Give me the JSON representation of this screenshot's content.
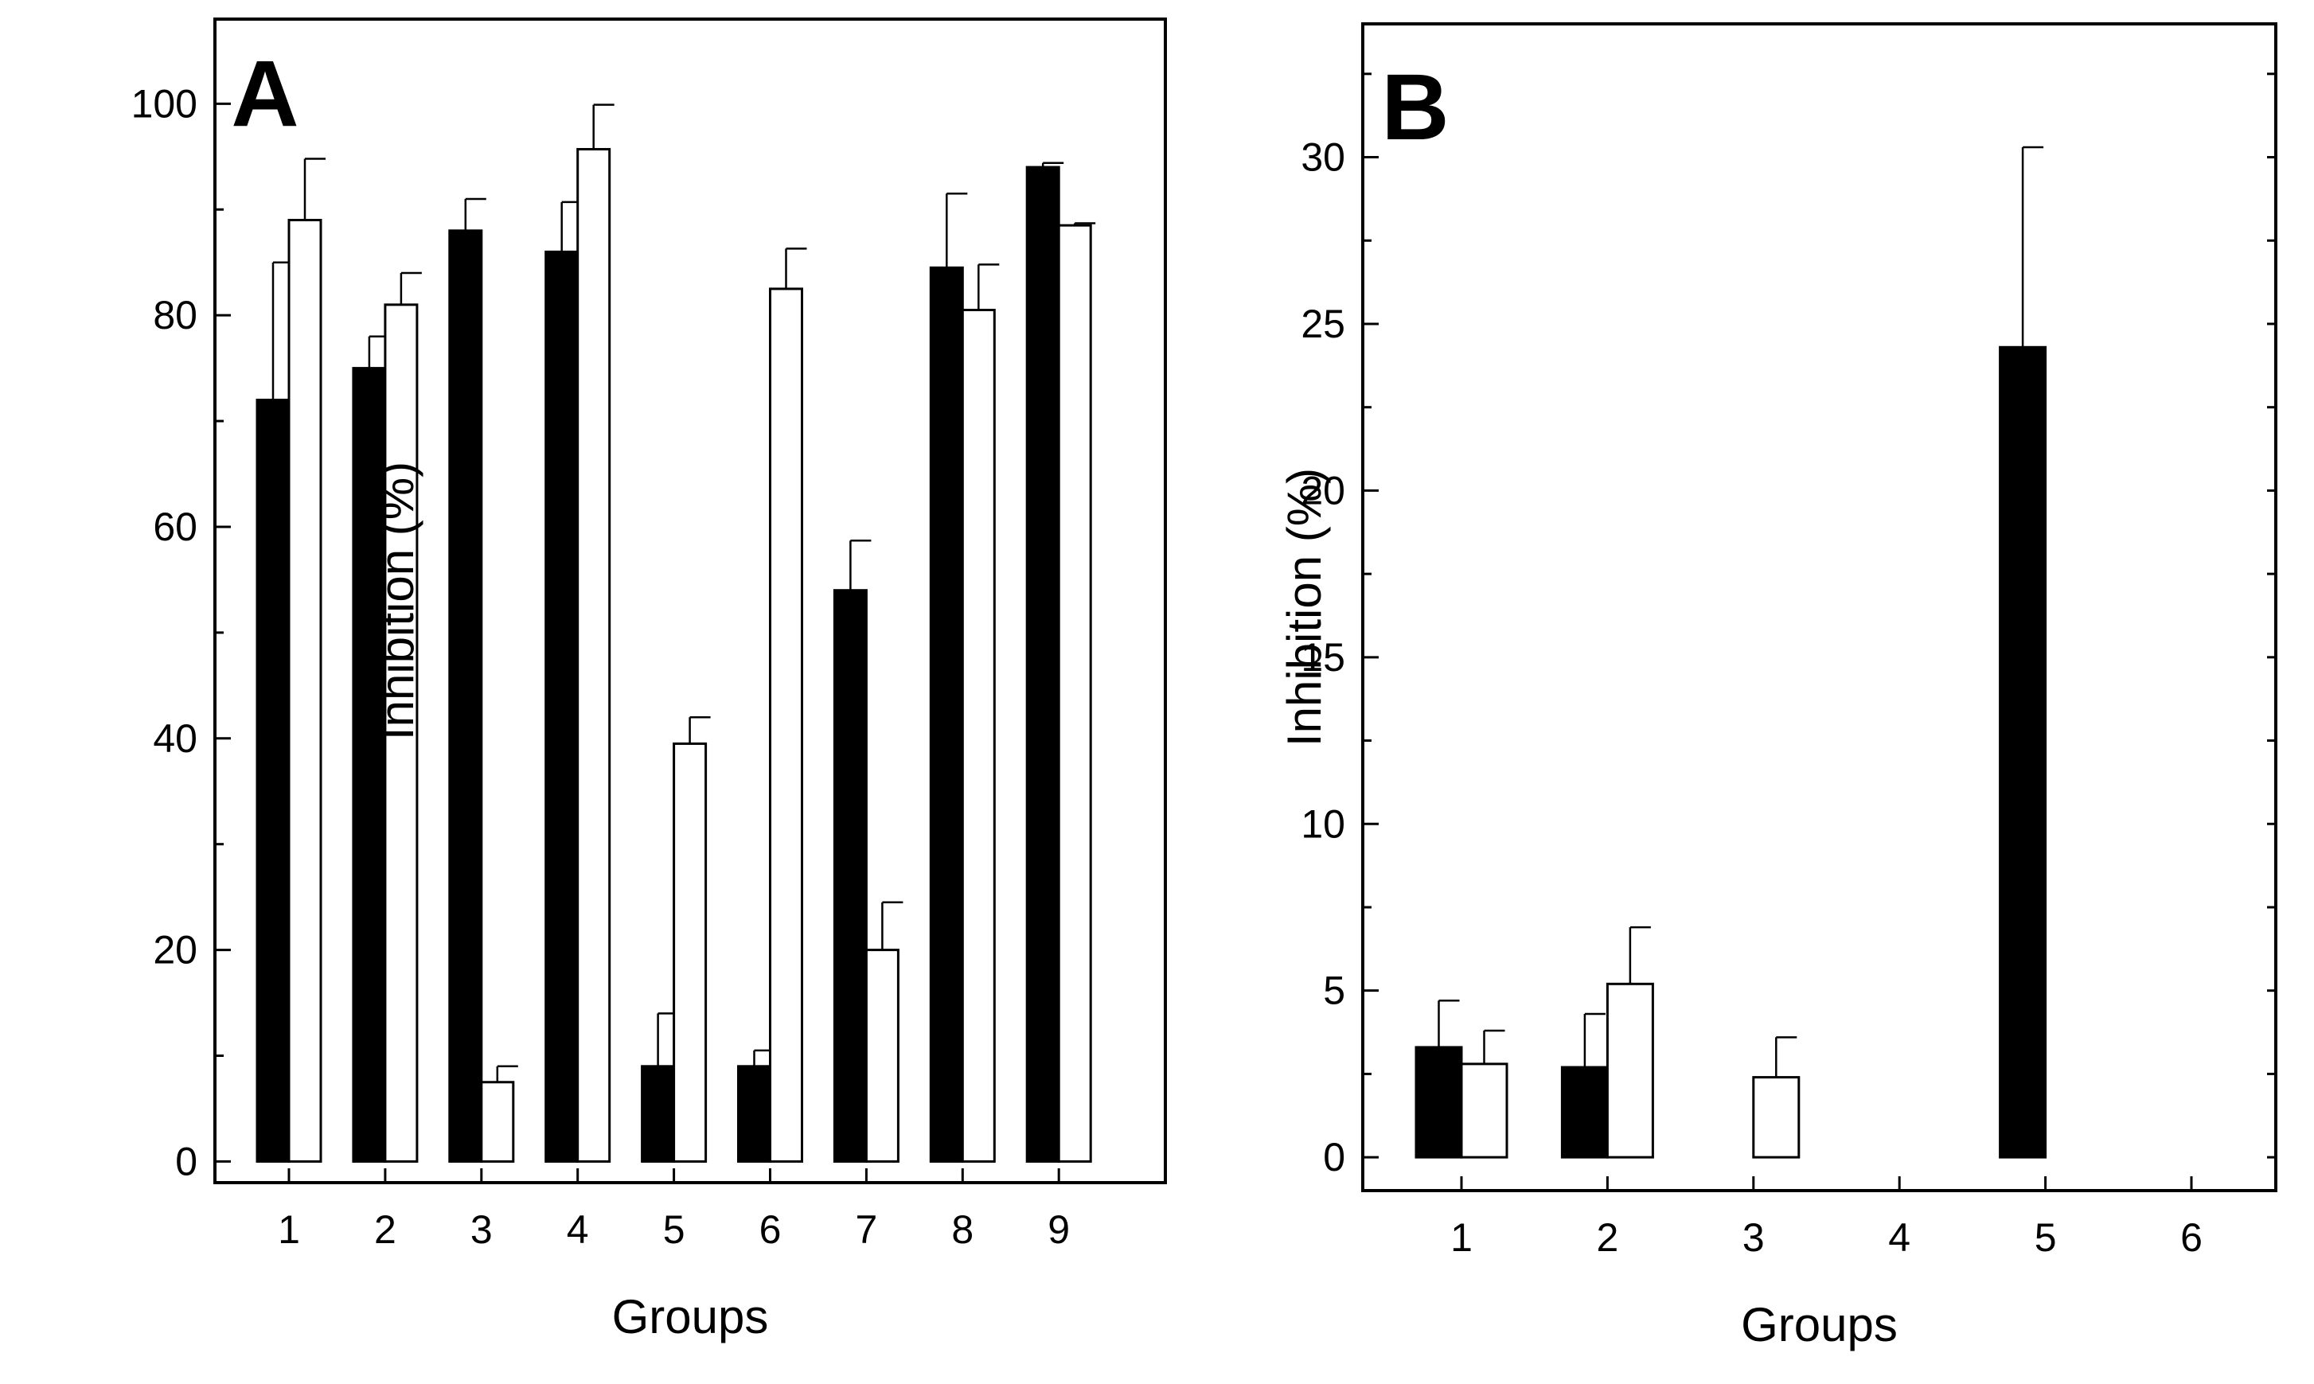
{
  "chart_data": [
    {
      "type": "bar",
      "panel_label": "A",
      "title": "",
      "xlabel": "Groups",
      "ylabel": "Inhibition (%)",
      "ylim": [
        -2,
        108
      ],
      "yticks": [
        0,
        20,
        40,
        60,
        80,
        100
      ],
      "grid": false,
      "legend": "none",
      "categories": [
        "1",
        "2",
        "3",
        "4",
        "5",
        "6",
        "7",
        "8",
        "9"
      ],
      "series": [
        {
          "name": "filled",
          "color": "#000000",
          "values": [
            72,
            75,
            88,
            86,
            9,
            9,
            54,
            84.5,
            94
          ],
          "errors": [
            13,
            3,
            3,
            4.7,
            5,
            1.5,
            4.7,
            7,
            0.4
          ]
        },
        {
          "name": "open",
          "color": "#ffffff",
          "values": [
            89,
            81,
            7.5,
            95.7,
            39.5,
            82.5,
            20,
            80.5,
            88.5
          ],
          "errors": [
            5.8,
            3,
            1.5,
            4.2,
            2.5,
            3.8,
            4.5,
            4.3,
            0.2
          ]
        }
      ]
    },
    {
      "type": "bar",
      "panel_label": "B",
      "title": "",
      "xlabel": "Groups",
      "ylabel": "Inhibition (%)",
      "ylim": [
        -1,
        34
      ],
      "yticks": [
        0,
        5,
        10,
        15,
        20,
        25,
        30
      ],
      "grid": false,
      "legend": "none",
      "categories": [
        "1",
        "2",
        "3",
        "4",
        "5",
        "6"
      ],
      "series": [
        {
          "name": "filled",
          "color": "#000000",
          "values": [
            3.3,
            2.7,
            0,
            0,
            24.3,
            0
          ],
          "errors": [
            1.4,
            1.6,
            0,
            0,
            6.0,
            0
          ]
        },
        {
          "name": "open",
          "color": "#ffffff",
          "values": [
            2.8,
            5.2,
            2.4,
            0,
            0,
            0
          ],
          "errors": [
            1.0,
            1.7,
            1.2,
            0,
            0,
            0
          ]
        }
      ]
    }
  ]
}
